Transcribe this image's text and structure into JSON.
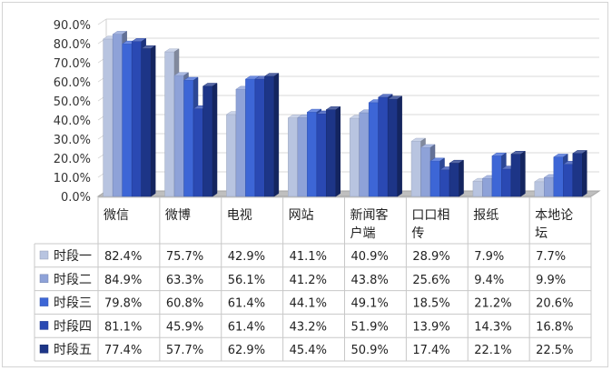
{
  "chart_data": {
    "type": "bar",
    "categories": [
      "微信",
      "微博",
      "电视",
      "网站",
      "新闻客户端",
      "口口相传",
      "报纸",
      "本地论坛"
    ],
    "category_lines": [
      [
        "微信"
      ],
      [
        "微博"
      ],
      [
        "电视"
      ],
      [
        "网站"
      ],
      [
        "新闻客",
        "户端"
      ],
      [
        "口口相",
        "传"
      ],
      [
        "报纸"
      ],
      [
        "本地论",
        "坛"
      ]
    ],
    "series": [
      {
        "name": "时段一",
        "color": "#b8c4e0",
        "values": [
          82.4,
          75.7,
          42.9,
          41.1,
          40.9,
          28.9,
          7.9,
          7.7
        ],
        "labels": [
          "82.4%",
          "75.7%",
          "42.9%",
          "41.1%",
          "40.9%",
          "28.9%",
          "7.9%",
          "7.7%"
        ]
      },
      {
        "name": "时段二",
        "color": "#8ea2d8",
        "values": [
          84.9,
          63.3,
          56.1,
          41.2,
          43.8,
          25.6,
          9.4,
          9.9
        ],
        "labels": [
          "84.9%",
          "63.3%",
          "56.1%",
          "41.2%",
          "43.8%",
          "25.6%",
          "9.4%",
          "9.9%"
        ]
      },
      {
        "name": "时段三",
        "color": "#3d66d6",
        "values": [
          79.8,
          60.8,
          61.4,
          44.1,
          49.1,
          18.5,
          21.2,
          20.6
        ],
        "labels": [
          "79.8%",
          "60.8%",
          "61.4%",
          "44.1%",
          "49.1%",
          "18.5%",
          "21.2%",
          "20.6%"
        ]
      },
      {
        "name": "时段四",
        "color": "#2a49b3",
        "values": [
          81.1,
          45.9,
          61.4,
          43.2,
          51.9,
          13.9,
          14.3,
          16.8
        ],
        "labels": [
          "81.1%",
          "45.9%",
          "61.4%",
          "43.2%",
          "51.9%",
          "13.9%",
          "14.3%",
          "16.8%"
        ]
      },
      {
        "name": "时段五",
        "color": "#1d3587",
        "values": [
          77.4,
          57.7,
          62.9,
          45.4,
          50.9,
          17.4,
          22.1,
          22.5
        ],
        "labels": [
          "77.4%",
          "57.7%",
          "62.9%",
          "45.4%",
          "50.9%",
          "17.4%",
          "22.1%",
          "22.5%"
        ]
      }
    ],
    "y_ticks": [
      "0.0%",
      "10.0%",
      "20.0%",
      "30.0%",
      "40.0%",
      "50.0%",
      "60.0%",
      "70.0%",
      "80.0%",
      "90.0%"
    ],
    "ylim": [
      0,
      90
    ],
    "grid": true,
    "legend": "data-table",
    "style": "3d-clustered-column"
  }
}
